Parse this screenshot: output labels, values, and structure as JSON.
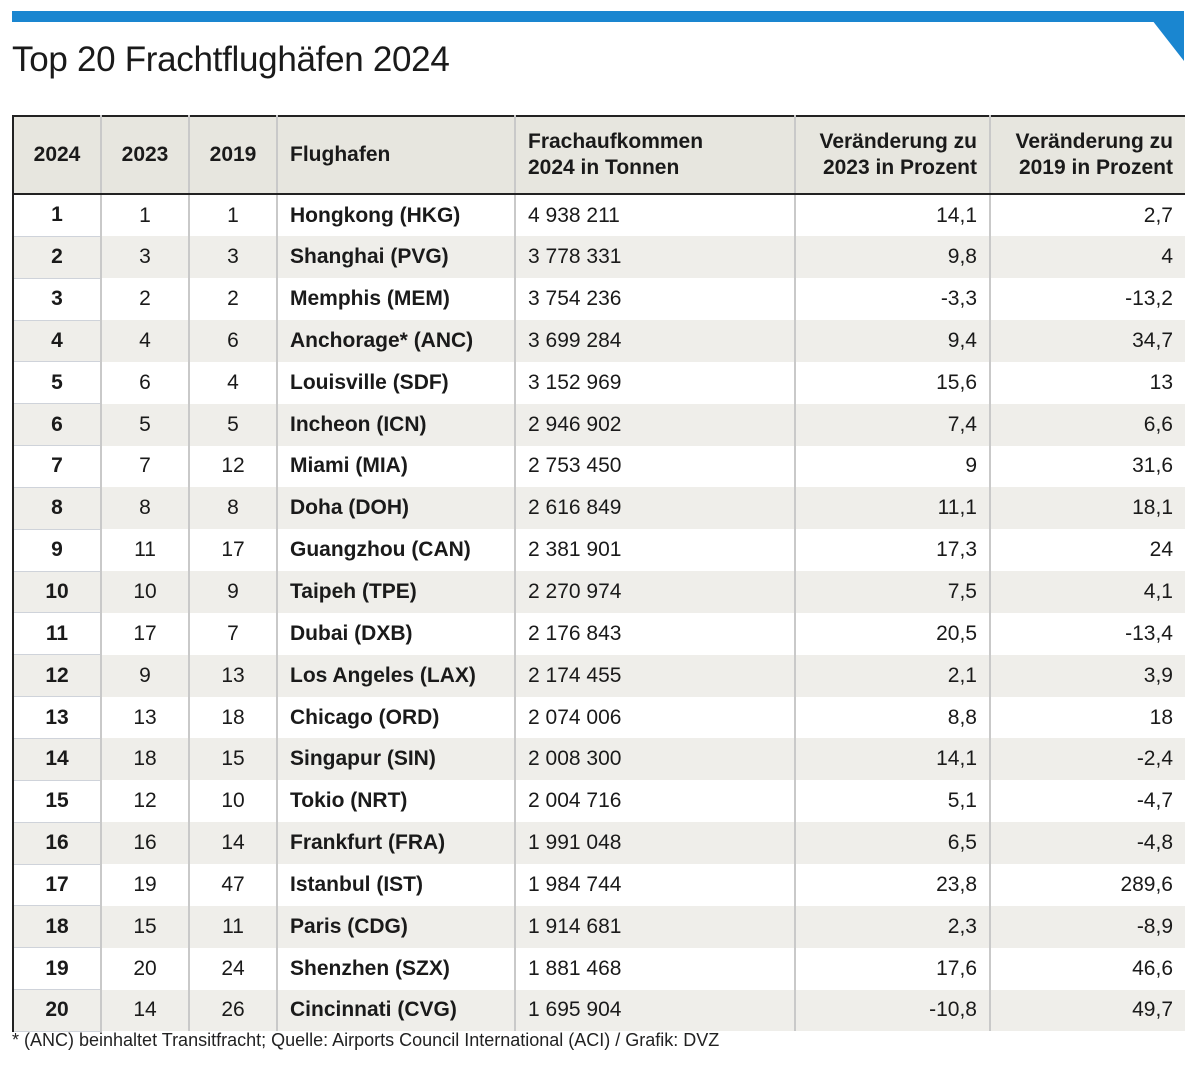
{
  "title": "Top 20 Frachtflughäfen 2024",
  "colors": {
    "accent": "#1a86d0",
    "header_bg": "#e7e6df",
    "row_alt_bg": "#efeeea"
  },
  "table": {
    "headers": {
      "y2024": "2024",
      "y2023": "2023",
      "y2019": "2019",
      "airport": "Flughafen",
      "volume_l1": "Frachaufkommen",
      "volume_l2": "2024 in Tonnen",
      "chg2023_l1": "Veränderung zu",
      "chg2023_l2": "2023 in Prozent",
      "chg2019_l1": "Veränderung zu",
      "chg2019_l2": "2019 in Prozent"
    },
    "rows": [
      {
        "r2024": "1",
        "r2023": "1",
        "r2019": "1",
        "airport": "Hongkong (HKG)",
        "tons": "4 938 211",
        "chg2023": "14,1",
        "chg2019": "2,7"
      },
      {
        "r2024": "2",
        "r2023": "3",
        "r2019": "3",
        "airport": "Shanghai (PVG)",
        "tons": "3 778 331",
        "chg2023": "9,8",
        "chg2019": "4"
      },
      {
        "r2024": "3",
        "r2023": "2",
        "r2019": "2",
        "airport": "Memphis (MEM)",
        "tons": "3 754 236",
        "chg2023": "-3,3",
        "chg2019": "-13,2"
      },
      {
        "r2024": "4",
        "r2023": "4",
        "r2019": "6",
        "airport": "Anchorage* (ANC)",
        "tons": "3 699 284",
        "chg2023": "9,4",
        "chg2019": "34,7"
      },
      {
        "r2024": "5",
        "r2023": "6",
        "r2019": "4",
        "airport": "Louisville (SDF)",
        "tons": "3 152 969",
        "chg2023": "15,6",
        "chg2019": "13"
      },
      {
        "r2024": "6",
        "r2023": "5",
        "r2019": "5",
        "airport": "Incheon (ICN)",
        "tons": "2 946 902",
        "chg2023": "7,4",
        "chg2019": "6,6"
      },
      {
        "r2024": "7",
        "r2023": "7",
        "r2019": "12",
        "airport": "Miami (MIA)",
        "tons": "2 753 450",
        "chg2023": "9",
        "chg2019": "31,6"
      },
      {
        "r2024": "8",
        "r2023": "8",
        "r2019": "8",
        "airport": "Doha (DOH)",
        "tons": "2 616 849",
        "chg2023": "11,1",
        "chg2019": "18,1"
      },
      {
        "r2024": "9",
        "r2023": "11",
        "r2019": "17",
        "airport": "Guangzhou (CAN)",
        "tons": "2 381 901",
        "chg2023": "17,3",
        "chg2019": "24"
      },
      {
        "r2024": "10",
        "r2023": "10",
        "r2019": "9",
        "airport": "Taipeh (TPE)",
        "tons": "2 270 974",
        "chg2023": "7,5",
        "chg2019": "4,1"
      },
      {
        "r2024": "11",
        "r2023": "17",
        "r2019": "7",
        "airport": "Dubai (DXB)",
        "tons": "2 176 843",
        "chg2023": "20,5",
        "chg2019": "-13,4"
      },
      {
        "r2024": "12",
        "r2023": "9",
        "r2019": "13",
        "airport": "Los Angeles (LAX)",
        "tons": "2 174 455",
        "chg2023": "2,1",
        "chg2019": "3,9"
      },
      {
        "r2024": "13",
        "r2023": "13",
        "r2019": "18",
        "airport": "Chicago (ORD)",
        "tons": "2 074 006",
        "chg2023": "8,8",
        "chg2019": "18"
      },
      {
        "r2024": "14",
        "r2023": "18",
        "r2019": "15",
        "airport": "Singapur (SIN)",
        "tons": "2 008 300",
        "chg2023": "14,1",
        "chg2019": "-2,4"
      },
      {
        "r2024": "15",
        "r2023": "12",
        "r2019": "10",
        "airport": "Tokio (NRT)",
        "tons": "2 004 716",
        "chg2023": "5,1",
        "chg2019": "-4,7"
      },
      {
        "r2024": "16",
        "r2023": "16",
        "r2019": "14",
        "airport": "Frankfurt (FRA)",
        "tons": "1 991 048",
        "chg2023": "6,5",
        "chg2019": "-4,8"
      },
      {
        "r2024": "17",
        "r2023": "19",
        "r2019": "47",
        "airport": "Istanbul (IST)",
        "tons": "1 984 744",
        "chg2023": "23,8",
        "chg2019": "289,6"
      },
      {
        "r2024": "18",
        "r2023": "15",
        "r2019": "11",
        "airport": "Paris (CDG)",
        "tons": "1 914 681",
        "chg2023": "2,3",
        "chg2019": "-8,9"
      },
      {
        "r2024": "19",
        "r2023": "20",
        "r2019": "24",
        "airport": "Shenzhen (SZX)",
        "tons": "1 881 468",
        "chg2023": "17,6",
        "chg2019": "46,6"
      },
      {
        "r2024": "20",
        "r2023": "14",
        "r2019": "26",
        "airport": "Cincinnati (CVG)",
        "tons": "1 695 904",
        "chg2023": "-10,8",
        "chg2019": "49,7"
      }
    ]
  },
  "footnote": "* (ANC) beinhaltet Transitfracht; Quelle: Airports Council International (ACI)  / Grafik: DVZ"
}
